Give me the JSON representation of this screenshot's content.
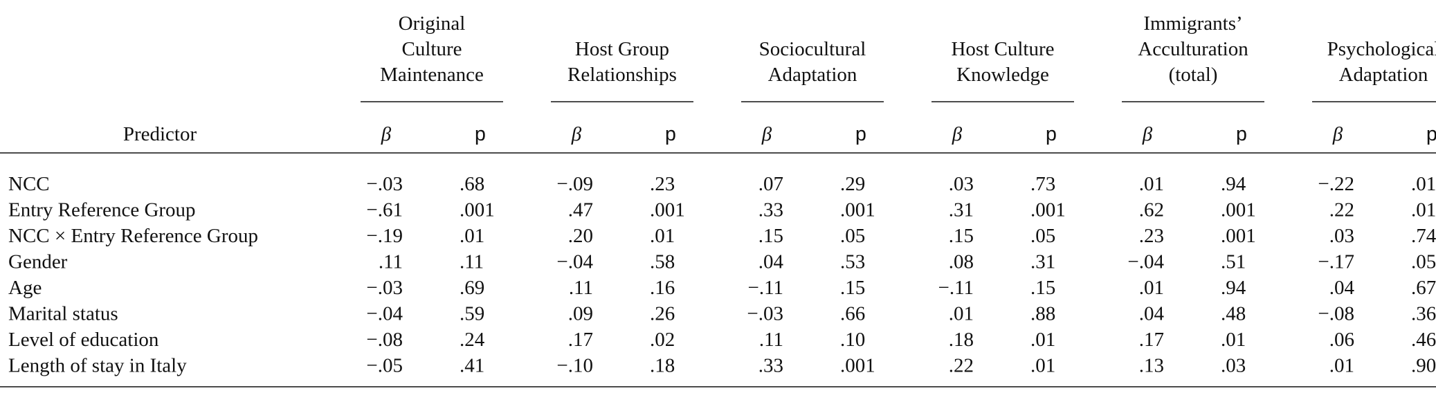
{
  "table": {
    "predictor_header": "Predictor",
    "groups": [
      {
        "label": [
          "Original",
          "Culture",
          "Maintenance"
        ],
        "subheaders": [
          "β",
          "p"
        ]
      },
      {
        "label": [
          "Host Group",
          "Relationships"
        ],
        "subheaders": [
          "β",
          "p"
        ]
      },
      {
        "label": [
          "Sociocultural",
          "Adaptation"
        ],
        "subheaders": [
          "β",
          "p"
        ]
      },
      {
        "label": [
          "Host Culture",
          "Knowledge"
        ],
        "subheaders": [
          "β",
          "p"
        ]
      },
      {
        "label": [
          "Immigrants’",
          "Acculturation",
          "(total)"
        ],
        "subheaders": [
          "β",
          "p"
        ]
      },
      {
        "label": [
          "Psychological",
          "Adaptation"
        ],
        "subheaders": [
          "β",
          "p"
        ]
      }
    ],
    "rows": [
      {
        "predictor": "NCC",
        "cells": [
          "−.03",
          ".68",
          "−.09",
          ".23",
          ".07",
          ".29",
          ".03",
          ".73",
          ".01",
          ".94",
          "−.22",
          ".01"
        ]
      },
      {
        "predictor": "Entry Reference Group",
        "cells": [
          "−.61",
          ".001",
          ".47",
          ".001",
          ".33",
          ".001",
          ".31",
          ".001",
          ".62",
          ".001",
          ".22",
          ".01"
        ]
      },
      {
        "predictor": "NCC × Entry Reference Group",
        "cells": [
          "−.19",
          ".01",
          ".20",
          ".01",
          ".15",
          ".05",
          ".15",
          ".05",
          ".23",
          ".001",
          ".03",
          ".74"
        ]
      },
      {
        "predictor": "Gender",
        "cells": [
          ".11",
          ".11",
          "−.04",
          ".58",
          ".04",
          ".53",
          ".08",
          ".31",
          "−.04",
          ".51",
          "−.17",
          ".05"
        ]
      },
      {
        "predictor": "Age",
        "cells": [
          "−.03",
          ".69",
          ".11",
          ".16",
          "−.11",
          ".15",
          "−.11",
          ".15",
          ".01",
          ".94",
          ".04",
          ".67"
        ]
      },
      {
        "predictor": "Marital status",
        "cells": [
          "−.04",
          ".59",
          ".09",
          ".26",
          "−.03",
          ".66",
          ".01",
          ".88",
          ".04",
          ".48",
          "−.08",
          ".36"
        ]
      },
      {
        "predictor": "Level of education",
        "cells": [
          "−.08",
          ".24",
          ".17",
          ".02",
          ".11",
          ".10",
          ".18",
          ".01",
          ".17",
          ".01",
          ".06",
          ".46"
        ]
      },
      {
        "predictor": "Length of stay in Italy",
        "cells": [
          "−.05",
          ".41",
          "−.10",
          ".18",
          ".33",
          ".001",
          ".22",
          ".01",
          ".13",
          ".03",
          ".01",
          ".90"
        ]
      }
    ]
  }
}
